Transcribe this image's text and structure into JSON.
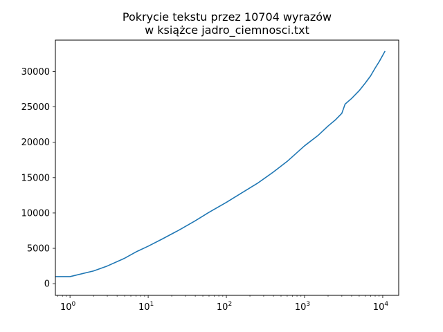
{
  "chart_data": {
    "type": "line",
    "title_line1": "Pokrycie tekstu przez 10704 wyrazów",
    "title_line2": "w książce jadro_ciemnosci.txt",
    "xlabel": "",
    "ylabel": "",
    "xscale": "log",
    "xlim": [
      0.65,
      16000
    ],
    "ylim": [
      -1650,
      34450
    ],
    "grid": false,
    "line_color": "#1f77b4",
    "x_ticks": [
      {
        "base": "10",
        "exp": "0",
        "value": 1
      },
      {
        "base": "10",
        "exp": "1",
        "value": 10
      },
      {
        "base": "10",
        "exp": "2",
        "value": 100
      },
      {
        "base": "10",
        "exp": "3",
        "value": 1000
      },
      {
        "base": "10",
        "exp": "4",
        "value": 10000
      }
    ],
    "y_ticks": [
      {
        "label": "0",
        "value": 0
      },
      {
        "label": "5000",
        "value": 5000
      },
      {
        "label": "10000",
        "value": 10000
      },
      {
        "label": "15000",
        "value": 15000
      },
      {
        "label": "20000",
        "value": 20000
      },
      {
        "label": "25000",
        "value": 25000
      },
      {
        "label": "30000",
        "value": 30000
      }
    ],
    "series": [
      {
        "x": [
          0.65,
          1,
          2,
          3,
          5,
          7,
          10,
          15,
          25,
          40,
          60,
          100,
          150,
          250,
          400,
          600,
          1000,
          1500,
          2000,
          2500,
          3000,
          3300,
          4000,
          5000,
          6000,
          7000,
          8000,
          9000,
          10704
        ],
        "y": [
          1000,
          1000,
          1800,
          2500,
          3600,
          4500,
          5300,
          6300,
          7600,
          8900,
          10100,
          11500,
          12700,
          14200,
          15800,
          17300,
          19500,
          21000,
          22300,
          23200,
          24100,
          25400,
          26200,
          27300,
          28400,
          29400,
          30500,
          31400,
          32900
        ]
      }
    ]
  }
}
